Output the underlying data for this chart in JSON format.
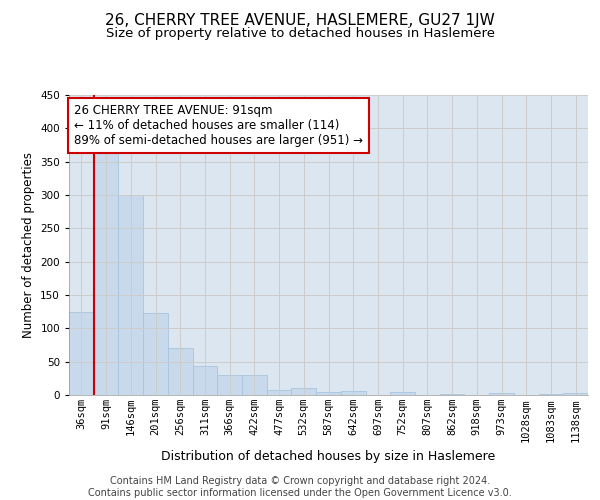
{
  "title": "26, CHERRY TREE AVENUE, HASLEMERE, GU27 1JW",
  "subtitle": "Size of property relative to detached houses in Haslemere",
  "xlabel": "Distribution of detached houses by size in Haslemere",
  "ylabel": "Number of detached properties",
  "categories": [
    "36sqm",
    "91sqm",
    "146sqm",
    "201sqm",
    "256sqm",
    "311sqm",
    "366sqm",
    "422sqm",
    "477sqm",
    "532sqm",
    "587sqm",
    "642sqm",
    "697sqm",
    "752sqm",
    "807sqm",
    "862sqm",
    "918sqm",
    "973sqm",
    "1028sqm",
    "1083sqm",
    "1138sqm"
  ],
  "bar_values": [
    125,
    370,
    300,
    123,
    70,
    44,
    30,
    30,
    8,
    10,
    5,
    6,
    0,
    4,
    0,
    2,
    0,
    3,
    0,
    2,
    3
  ],
  "bar_color": "#c9d9ec",
  "bar_edge_color": "#a8c4de",
  "vline_color": "#cc0000",
  "annotation_text": "26 CHERRY TREE AVENUE: 91sqm\n← 11% of detached houses are smaller (114)\n89% of semi-detached houses are larger (951) →",
  "annotation_box_color": "white",
  "annotation_box_edge": "#cc0000",
  "ylim": [
    0,
    450
  ],
  "grid_color": "#cccccc",
  "plot_background": "#dce6f0",
  "footer": "Contains HM Land Registry data © Crown copyright and database right 2024.\nContains public sector information licensed under the Open Government Licence v3.0.",
  "title_fontsize": 11,
  "subtitle_fontsize": 9.5,
  "xlabel_fontsize": 9,
  "ylabel_fontsize": 8.5,
  "tick_fontsize": 7.5,
  "annotation_fontsize": 8.5,
  "footer_fontsize": 7
}
